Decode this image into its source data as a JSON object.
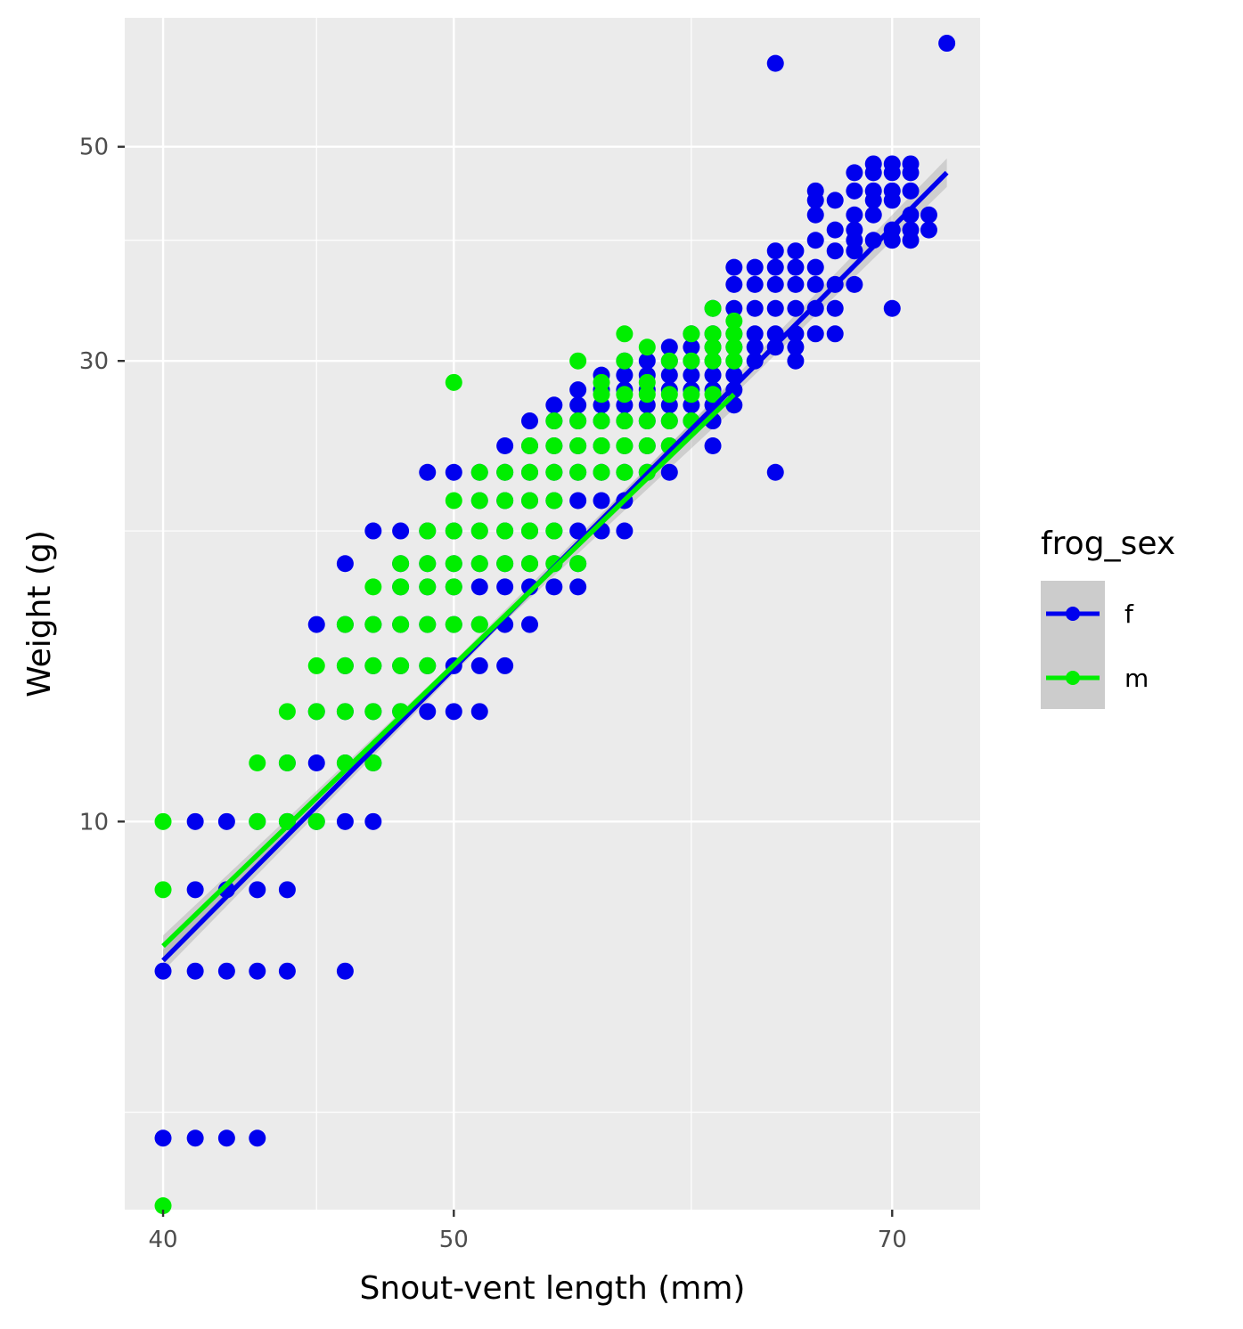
{
  "chart_data": {
    "type": "scatter",
    "scale": "log-log",
    "xlabel": "Snout-vent length (mm)",
    "ylabel": "Weight (g)",
    "x_ticks": [
      "40",
      "50",
      "70"
    ],
    "x_tick_values": [
      40,
      50,
      70
    ],
    "x_minor_tick_values": [
      45,
      60
    ],
    "y_ticks": [
      "10",
      "30",
      "50"
    ],
    "y_tick_values": [
      10,
      30,
      50
    ],
    "y_minor_tick_values": [
      5,
      20,
      40
    ],
    "xlim": [
      38.84,
      74.89
    ],
    "ylim": [
      3.963,
      68.0
    ],
    "grid": true,
    "legend": {
      "title": "frog_sex",
      "position": "right",
      "entries": [
        "f",
        "m"
      ]
    },
    "series": [
      {
        "name": "f",
        "color": "#0000ee",
        "fit": {
          "x": [
            40,
            73
          ],
          "y": [
            7.18,
            47.0
          ]
        },
        "points": [
          [
            40,
            4.7
          ],
          [
            41,
            4.7
          ],
          [
            42,
            4.7
          ],
          [
            43,
            4.7
          ],
          [
            40,
            7.0
          ],
          [
            41,
            7.0
          ],
          [
            42,
            7.0
          ],
          [
            43,
            7.0
          ],
          [
            44,
            7.0
          ],
          [
            46,
            7.0
          ],
          [
            41,
            8.5
          ],
          [
            42,
            8.5
          ],
          [
            43,
            8.5
          ],
          [
            44,
            8.5
          ],
          [
            41,
            10
          ],
          [
            42,
            10
          ],
          [
            43,
            10
          ],
          [
            44,
            10
          ],
          [
            45,
            10
          ],
          [
            46,
            10
          ],
          [
            47,
            10
          ],
          [
            44,
            11.5
          ],
          [
            45,
            11.5
          ],
          [
            46,
            11.5
          ],
          [
            47,
            11.5
          ],
          [
            45,
            13
          ],
          [
            46,
            13
          ],
          [
            47,
            13
          ],
          [
            48,
            13
          ],
          [
            49,
            13
          ],
          [
            50,
            13
          ],
          [
            51,
            13
          ],
          [
            46,
            14.5
          ],
          [
            47,
            14.5
          ],
          [
            48,
            14.5
          ],
          [
            49,
            14.5
          ],
          [
            50,
            14.5
          ],
          [
            51,
            14.5
          ],
          [
            52,
            14.5
          ],
          [
            45,
            16
          ],
          [
            46,
            16
          ],
          [
            47,
            16
          ],
          [
            48,
            16
          ],
          [
            49,
            16
          ],
          [
            50,
            16
          ],
          [
            51,
            16
          ],
          [
            52,
            16
          ],
          [
            53,
            16
          ],
          [
            48,
            17.5
          ],
          [
            49,
            17.5
          ],
          [
            50,
            17.5
          ],
          [
            51,
            17.5
          ],
          [
            52,
            17.5
          ],
          [
            53,
            17.5
          ],
          [
            54,
            17.5
          ],
          [
            55,
            17.5
          ],
          [
            46,
            18.5
          ],
          [
            48,
            18.5
          ],
          [
            49,
            18.5
          ],
          [
            50,
            18.5
          ],
          [
            51,
            18.5
          ],
          [
            52,
            18.5
          ],
          [
            53,
            18.5
          ],
          [
            54,
            18.5
          ],
          [
            55,
            18.5
          ],
          [
            47,
            20
          ],
          [
            48,
            20
          ],
          [
            49,
            20
          ],
          [
            50,
            20
          ],
          [
            51,
            20
          ],
          [
            52,
            20
          ],
          [
            53,
            20
          ],
          [
            54,
            20
          ],
          [
            55,
            20
          ],
          [
            56,
            20
          ],
          [
            57,
            20
          ],
          [
            51,
            21.5
          ],
          [
            52,
            21.5
          ],
          [
            53,
            21.5
          ],
          [
            54,
            21.5
          ],
          [
            55,
            21.5
          ],
          [
            56,
            21.5
          ],
          [
            57,
            21.5
          ],
          [
            49,
            23
          ],
          [
            50,
            23
          ],
          [
            51,
            23
          ],
          [
            52,
            23
          ],
          [
            53,
            23
          ],
          [
            54,
            23
          ],
          [
            55,
            23
          ],
          [
            56,
            23
          ],
          [
            57,
            23
          ],
          [
            58,
            23
          ],
          [
            59,
            23
          ],
          [
            64,
            23
          ],
          [
            52,
            24.5
          ],
          [
            53,
            24.5
          ],
          [
            54,
            24.5
          ],
          [
            55,
            24.5
          ],
          [
            56,
            24.5
          ],
          [
            57,
            24.5
          ],
          [
            58,
            24.5
          ],
          [
            59,
            24.5
          ],
          [
            61,
            24.5
          ],
          [
            53,
            26
          ],
          [
            54,
            26
          ],
          [
            55,
            26
          ],
          [
            56,
            26
          ],
          [
            57,
            26
          ],
          [
            58,
            26
          ],
          [
            59,
            26
          ],
          [
            60,
            26
          ],
          [
            61,
            26
          ],
          [
            54,
            27
          ],
          [
            55,
            27
          ],
          [
            56,
            27
          ],
          [
            57,
            27
          ],
          [
            58,
            27
          ],
          [
            59,
            27
          ],
          [
            60,
            27
          ],
          [
            61,
            27
          ],
          [
            62,
            27
          ],
          [
            55,
            28
          ],
          [
            56,
            28
          ],
          [
            57,
            28
          ],
          [
            58,
            28
          ],
          [
            59,
            28
          ],
          [
            60,
            28
          ],
          [
            61,
            28
          ],
          [
            62,
            28
          ],
          [
            56,
            29
          ],
          [
            57,
            29
          ],
          [
            58,
            29
          ],
          [
            59,
            29
          ],
          [
            60,
            29
          ],
          [
            61,
            29
          ],
          [
            62,
            29
          ],
          [
            57,
            30
          ],
          [
            58,
            30
          ],
          [
            59,
            30
          ],
          [
            60,
            30
          ],
          [
            61,
            30
          ],
          [
            62,
            30
          ],
          [
            63,
            30
          ],
          [
            65,
            30
          ],
          [
            59,
            31
          ],
          [
            60,
            31
          ],
          [
            61,
            31
          ],
          [
            62,
            31
          ],
          [
            63,
            31
          ],
          [
            64,
            31
          ],
          [
            65,
            31
          ],
          [
            60,
            32
          ],
          [
            61,
            32
          ],
          [
            62,
            32
          ],
          [
            63,
            32
          ],
          [
            64,
            32
          ],
          [
            65,
            32
          ],
          [
            66,
            32
          ],
          [
            67,
            32
          ],
          [
            61,
            34
          ],
          [
            62,
            34
          ],
          [
            63,
            34
          ],
          [
            64,
            34
          ],
          [
            65,
            34
          ],
          [
            66,
            34
          ],
          [
            67,
            34
          ],
          [
            70,
            34
          ],
          [
            62,
            36
          ],
          [
            63,
            36
          ],
          [
            64,
            36
          ],
          [
            65,
            36
          ],
          [
            66,
            36
          ],
          [
            67,
            36
          ],
          [
            68,
            36
          ],
          [
            62,
            37.5
          ],
          [
            63,
            37.5
          ],
          [
            64,
            37.5
          ],
          [
            65,
            37.5
          ],
          [
            66,
            37.5
          ],
          [
            64,
            39
          ],
          [
            65,
            39
          ],
          [
            67,
            39
          ],
          [
            68,
            39
          ],
          [
            66,
            40
          ],
          [
            68,
            40
          ],
          [
            69,
            40
          ],
          [
            70,
            40
          ],
          [
            71,
            40
          ],
          [
            67,
            41
          ],
          [
            68,
            41
          ],
          [
            70,
            41
          ],
          [
            71,
            41
          ],
          [
            72,
            41
          ],
          [
            66,
            42.5
          ],
          [
            68,
            42.5
          ],
          [
            69,
            42.5
          ],
          [
            71,
            42.5
          ],
          [
            72,
            42.5
          ],
          [
            66,
            44
          ],
          [
            67,
            44
          ],
          [
            69,
            44
          ],
          [
            70,
            44
          ],
          [
            66,
            45
          ],
          [
            68,
            45
          ],
          [
            69,
            45
          ],
          [
            70,
            45
          ],
          [
            71,
            45
          ],
          [
            68,
            47
          ],
          [
            69,
            47
          ],
          [
            70,
            47
          ],
          [
            71,
            47
          ],
          [
            69,
            48
          ],
          [
            70,
            48
          ],
          [
            71,
            48
          ],
          [
            64,
            61
          ],
          [
            73,
            64
          ]
        ]
      },
      {
        "name": "m",
        "color": "#00ee00",
        "fit": {
          "x": [
            40,
            62
          ],
          "y": [
            7.43,
            27.7
          ]
        },
        "points": [
          [
            40,
            4.0
          ],
          [
            40,
            8.5
          ],
          [
            40,
            10
          ],
          [
            43,
            10
          ],
          [
            44,
            10
          ],
          [
            45,
            10
          ],
          [
            43,
            11.5
          ],
          [
            44,
            11.5
          ],
          [
            46,
            11.5
          ],
          [
            47,
            11.5
          ],
          [
            44,
            13
          ],
          [
            45,
            13
          ],
          [
            46,
            13
          ],
          [
            47,
            13
          ],
          [
            48,
            13
          ],
          [
            45,
            14.5
          ],
          [
            46,
            14.5
          ],
          [
            47,
            14.5
          ],
          [
            48,
            14.5
          ],
          [
            49,
            14.5
          ],
          [
            46,
            16
          ],
          [
            47,
            16
          ],
          [
            48,
            16
          ],
          [
            49,
            16
          ],
          [
            50,
            16
          ],
          [
            51,
            16
          ],
          [
            47,
            17.5
          ],
          [
            48,
            17.5
          ],
          [
            49,
            17.5
          ],
          [
            50,
            17.5
          ],
          [
            48,
            18.5
          ],
          [
            49,
            18.5
          ],
          [
            50,
            18.5
          ],
          [
            51,
            18.5
          ],
          [
            52,
            18.5
          ],
          [
            53,
            18.5
          ],
          [
            54,
            18.5
          ],
          [
            55,
            18.5
          ],
          [
            49,
            20
          ],
          [
            50,
            20
          ],
          [
            51,
            20
          ],
          [
            52,
            20
          ],
          [
            53,
            20
          ],
          [
            54,
            20
          ],
          [
            50,
            21.5
          ],
          [
            51,
            21.5
          ],
          [
            52,
            21.5
          ],
          [
            53,
            21.5
          ],
          [
            54,
            21.5
          ],
          [
            51,
            23
          ],
          [
            52,
            23
          ],
          [
            53,
            23
          ],
          [
            54,
            23
          ],
          [
            55,
            23
          ],
          [
            56,
            23
          ],
          [
            57,
            23
          ],
          [
            58,
            23
          ],
          [
            53,
            24.5
          ],
          [
            54,
            24.5
          ],
          [
            55,
            24.5
          ],
          [
            56,
            24.5
          ],
          [
            57,
            24.5
          ],
          [
            58,
            24.5
          ],
          [
            59,
            24.5
          ],
          [
            54,
            26
          ],
          [
            55,
            26
          ],
          [
            56,
            26
          ],
          [
            57,
            26
          ],
          [
            58,
            26
          ],
          [
            59,
            26
          ],
          [
            60,
            26
          ],
          [
            56,
            27.7
          ],
          [
            57,
            27.7
          ],
          [
            58,
            27.7
          ],
          [
            59,
            27.7
          ],
          [
            60,
            27.7
          ],
          [
            61,
            27.7
          ],
          [
            50,
            28.5
          ],
          [
            56,
            28.5
          ],
          [
            58,
            28.5
          ],
          [
            55,
            30
          ],
          [
            57,
            30
          ],
          [
            59,
            30
          ],
          [
            60,
            30
          ],
          [
            61,
            30
          ],
          [
            62,
            30
          ],
          [
            58,
            31
          ],
          [
            61,
            31
          ],
          [
            62,
            31
          ],
          [
            57,
            32
          ],
          [
            60,
            32
          ],
          [
            61,
            32
          ],
          [
            62,
            32
          ],
          [
            62,
            33
          ],
          [
            61,
            34
          ]
        ]
      }
    ]
  }
}
